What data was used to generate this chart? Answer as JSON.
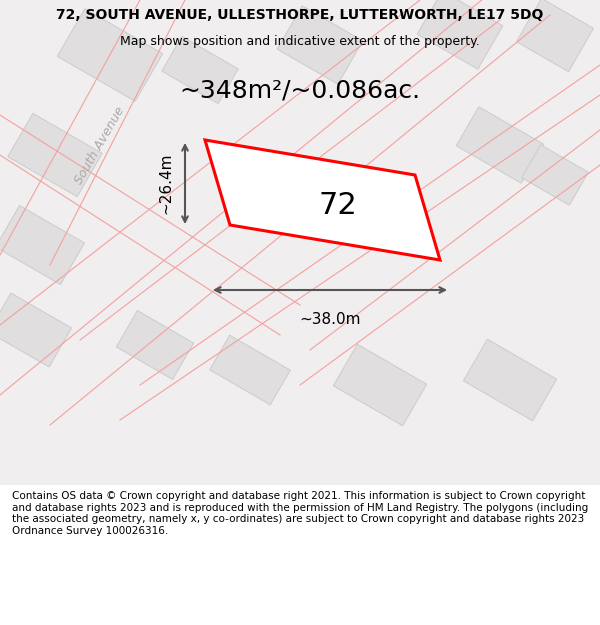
{
  "title": "72, SOUTH AVENUE, ULLESTHORPE, LUTTERWORTH, LE17 5DQ",
  "subtitle": "Map shows position and indicative extent of the property.",
  "area_text": "~348m²/~0.086ac.",
  "label_72": "72",
  "dim_width": "~38.0m",
  "dim_height": "~26.4m",
  "street_label": "South Avenue",
  "footer": "Contains OS data © Crown copyright and database right 2021. This information is subject to Crown copyright and database rights 2023 and is reproduced with the permission of HM Land Registry. The polygons (including the associated geometry, namely x, y co-ordinates) are subject to Crown copyright and database rights 2023 Ordnance Survey 100026316.",
  "bg_color": "#f5f5f5",
  "map_bg": "#f0eeee",
  "road_color": "#ffffff",
  "building_color": "#e0dede",
  "building_edge": "#cccccc",
  "plot_color": "#ff0000",
  "plot_fill": "#ffffff",
  "pink_line": "#f4a0a0",
  "dark_line": "#555555",
  "title_fontsize": 10,
  "subtitle_fontsize": 9,
  "footer_fontsize": 7.5
}
